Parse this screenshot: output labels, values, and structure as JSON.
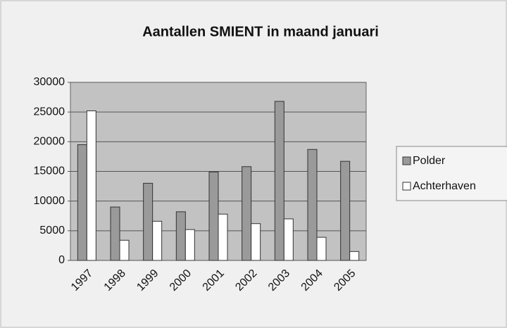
{
  "chart_data": {
    "type": "bar",
    "title": "Aantallen SMIENT in maand januari",
    "categories": [
      "1997",
      "1998",
      "1999",
      "2000",
      "2001",
      "2002",
      "2003",
      "2004",
      "2005"
    ],
    "series": [
      {
        "name": "Polder",
        "color": "#9a9a9a",
        "values": [
          19500,
          9000,
          13000,
          8200,
          14900,
          15800,
          26800,
          18700,
          16700
        ]
      },
      {
        "name": "Achterhaven",
        "color": "#ffffff",
        "values": [
          25200,
          3400,
          6600,
          5200,
          7800,
          6200,
          7000,
          3900,
          1500
        ]
      }
    ],
    "ylim": [
      0,
      30000
    ],
    "yticks": [
      0,
      5000,
      10000,
      15000,
      20000,
      25000,
      30000
    ],
    "grid": true,
    "legend": "right"
  }
}
